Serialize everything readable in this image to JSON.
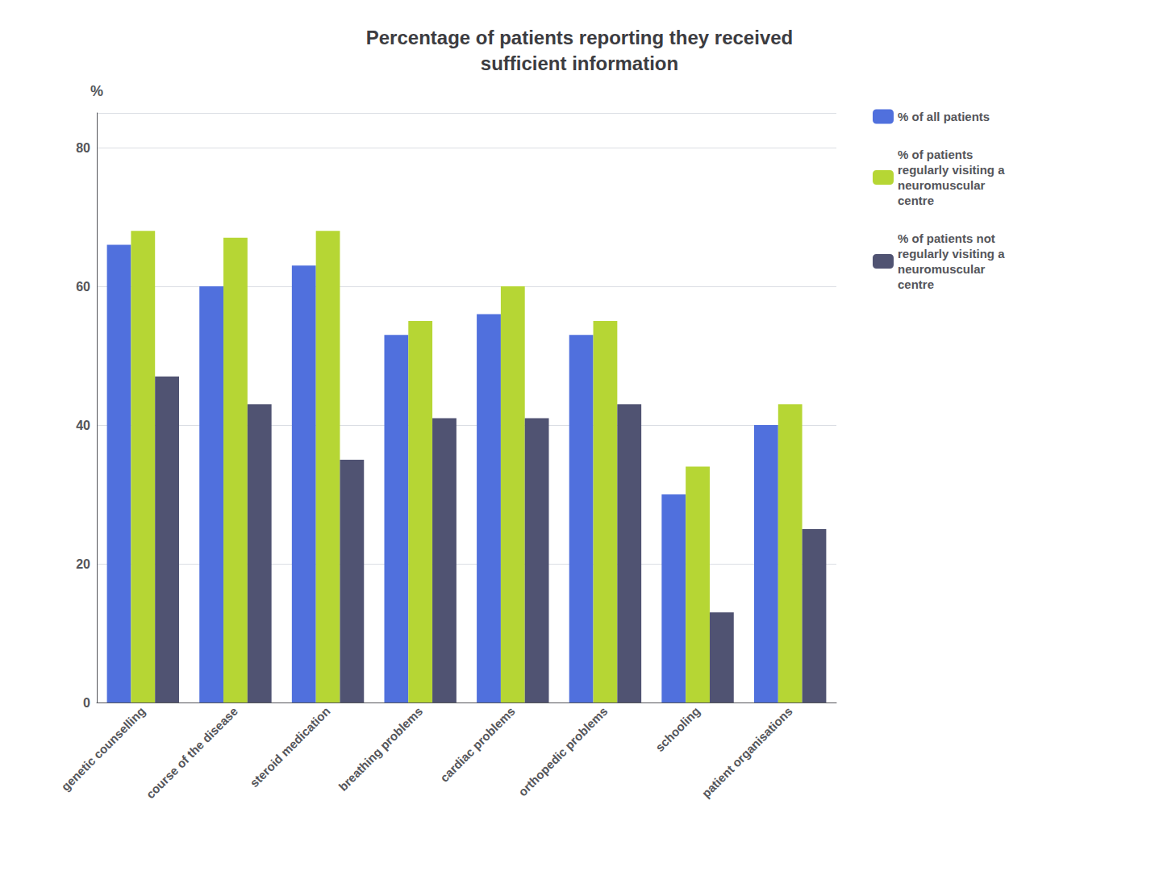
{
  "chart_data": {
    "type": "bar",
    "title": "Percentage of patients reporting they received\nsufficient information",
    "categories": [
      "genetic counselling",
      "course of the disease",
      "steroid medication",
      "breathing problems",
      "cardiac problems",
      "orthopedic problems",
      "schooling",
      "patient organisations"
    ],
    "series": [
      {
        "name": "% of all patients",
        "values": [
          66,
          60,
          63,
          53,
          56,
          53,
          30,
          40
        ]
      },
      {
        "name": "% of patients\nregularly visiting a\nneuromuscular\ncentre",
        "values": [
          68,
          67,
          68,
          55,
          60,
          55,
          34,
          43
        ]
      },
      {
        "name": "% of patients not\nregularly visiting a\nneuromuscular\ncentre",
        "values": [
          47,
          43,
          35,
          41,
          41,
          43,
          13,
          25
        ]
      }
    ],
    "ylabel": "%",
    "ylim": [
      0,
      85
    ],
    "yticks": [
      0,
      20,
      40,
      60,
      80
    ],
    "grid": true,
    "legend": "right"
  }
}
